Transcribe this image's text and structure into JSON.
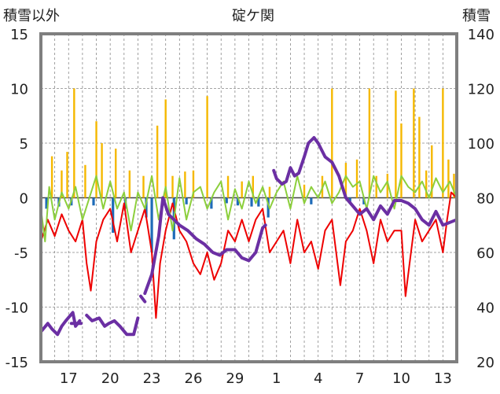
{
  "chart_data": {
    "type": "line",
    "title": "碇ケ関",
    "left_axis_label": "積雪以外",
    "right_axis_label": "積雪",
    "left_ylim": [
      -15,
      15
    ],
    "right_ylim": [
      20,
      140
    ],
    "left_ticks": [
      "15",
      "10",
      "5",
      "0",
      "-5",
      "-10",
      "-15"
    ],
    "right_ticks": [
      "140",
      "120",
      "100",
      "80",
      "60",
      "40",
      "20"
    ],
    "x_tick_labels": [
      "17",
      "20",
      "23",
      "26",
      "29",
      "1",
      "4",
      "7",
      "10",
      "13"
    ],
    "x_tick_days": [
      2,
      5,
      8,
      11,
      14,
      17,
      20,
      23,
      26,
      29
    ],
    "x_range_days": [
      0,
      30
    ],
    "grid": true,
    "colors": {
      "temperature": "#ee0000",
      "secondary": "#8ccf3c",
      "precip_orange": "#f5b800",
      "precip_blue": "#1e6bb8",
      "snow_depth": "#6b2fa3",
      "frame": "#7f7f7f",
      "grid": "#888888"
    },
    "bars_orange": [
      {
        "d": 0.8,
        "v": 3.8
      },
      {
        "d": 1.5,
        "v": 2.5
      },
      {
        "d": 1.9,
        "v": 4.2
      },
      {
        "d": 2.4,
        "v": 10.0
      },
      {
        "d": 3.2,
        "v": 3.0
      },
      {
        "d": 4.0,
        "v": 7.0
      },
      {
        "d": 4.4,
        "v": 5.0
      },
      {
        "d": 5.4,
        "v": 4.5
      },
      {
        "d": 6.4,
        "v": 2.5
      },
      {
        "d": 7.4,
        "v": 2.0
      },
      {
        "d": 8.4,
        "v": 6.6
      },
      {
        "d": 9.0,
        "v": 9.0
      },
      {
        "d": 9.5,
        "v": 2.0
      },
      {
        "d": 10.4,
        "v": 2.4
      },
      {
        "d": 11.0,
        "v": 2.5
      },
      {
        "d": 12.0,
        "v": 9.3
      },
      {
        "d": 13.5,
        "v": 2.0
      },
      {
        "d": 14.5,
        "v": 1.5
      },
      {
        "d": 15.3,
        "v": 2.0
      },
      {
        "d": 16.5,
        "v": 1.0
      },
      {
        "d": 19.0,
        "v": 1.2
      },
      {
        "d": 20.3,
        "v": 2.0
      },
      {
        "d": 21.0,
        "v": 10.0
      },
      {
        "d": 22.0,
        "v": 3.2
      },
      {
        "d": 22.8,
        "v": 3.5
      },
      {
        "d": 23.7,
        "v": 10.0
      },
      {
        "d": 24.2,
        "v": 2.0
      },
      {
        "d": 25.0,
        "v": 2.2
      },
      {
        "d": 25.6,
        "v": 9.8
      },
      {
        "d": 26.0,
        "v": 6.8
      },
      {
        "d": 26.9,
        "v": 10.0
      },
      {
        "d": 27.3,
        "v": 7.4
      },
      {
        "d": 27.8,
        "v": 2.5
      },
      {
        "d": 28.2,
        "v": 4.8
      },
      {
        "d": 29.0,
        "v": 10.0
      },
      {
        "d": 29.4,
        "v": 3.5
      },
      {
        "d": 29.8,
        "v": 2.2
      }
    ],
    "bars_blue": [
      {
        "d": 0.4,
        "v": -1.0
      },
      {
        "d": 1.3,
        "v": -0.8
      },
      {
        "d": 2.2,
        "v": -0.7
      },
      {
        "d": 3.8,
        "v": -0.7
      },
      {
        "d": 5.2,
        "v": -3.2
      },
      {
        "d": 6.1,
        "v": -1.0
      },
      {
        "d": 7.6,
        "v": -1.8
      },
      {
        "d": 8.0,
        "v": -5.0
      },
      {
        "d": 9.6,
        "v": -3.8
      },
      {
        "d": 10.5,
        "v": -0.6
      },
      {
        "d": 12.3,
        "v": -1.0
      },
      {
        "d": 13.4,
        "v": -0.5
      },
      {
        "d": 14.2,
        "v": -0.7
      },
      {
        "d": 15.2,
        "v": -0.8
      },
      {
        "d": 15.7,
        "v": -0.8
      },
      {
        "d": 16.4,
        "v": -1.8
      },
      {
        "d": 19.5,
        "v": -0.6
      },
      {
        "d": 22.3,
        "v": -0.5
      },
      {
        "d": 23.3,
        "v": -0.6
      }
    ],
    "series": [
      {
        "key": "temperature",
        "axis": "left",
        "stroke_width": 2,
        "x": [
          0,
          0.5,
          1,
          1.5,
          2,
          2.5,
          3,
          3.3,
          3.6,
          4,
          4.5,
          5,
          5.5,
          6,
          6.5,
          7,
          7.5,
          8,
          8.3,
          8.6,
          9,
          9.5,
          10,
          10.5,
          11,
          11.5,
          12,
          12.5,
          13,
          13.5,
          14,
          14.5,
          15,
          15.5,
          16,
          16.5,
          17,
          17.5,
          18,
          18.5,
          19,
          19.5,
          20,
          20.5,
          21,
          21.3,
          21.6,
          22,
          22.5,
          23,
          23.5,
          24,
          24.5,
          25,
          25.5,
          26,
          26.3,
          26.6,
          27,
          27.5,
          28,
          28.5,
          29,
          29.3,
          29.6,
          30
        ],
        "y": [
          -4,
          -2,
          -3.5,
          -1.5,
          -3,
          -4,
          -2,
          -6,
          -8.5,
          -4,
          -2,
          -1,
          -4,
          -0.5,
          -5,
          -3,
          -1,
          -5,
          -11,
          -6,
          -3,
          -0.5,
          -3,
          -4,
          -6,
          -7,
          -5,
          -7.5,
          -6,
          -3,
          -4,
          -2,
          -4,
          -2,
          -1,
          -5,
          -4,
          -3,
          -6,
          -2,
          -5,
          -4,
          -6.5,
          -3,
          -2,
          -5,
          -8,
          -4,
          -3,
          -1,
          -3,
          -6,
          -2,
          -4,
          -3,
          -3,
          -9,
          -6,
          -2,
          -4,
          -3,
          -2,
          -5,
          -2,
          0.5,
          0
        ]
      },
      {
        "key": "secondary",
        "axis": "left",
        "stroke_width": 2,
        "x": [
          0,
          0.3,
          0.6,
          1,
          1.5,
          2,
          2.5,
          3,
          3.5,
          4,
          4.5,
          5,
          5.5,
          6,
          6.5,
          7,
          7.5,
          8,
          8.5,
          9,
          9.5,
          10,
          10.5,
          11,
          11.5,
          12,
          12.5,
          13,
          13.5,
          14,
          14.5,
          15,
          15.5,
          16,
          16.5,
          17,
          17.5,
          18,
          18.5,
          19,
          19.5,
          20,
          20.5,
          21,
          21.5,
          22,
          22.5,
          23,
          23.5,
          24,
          24.5,
          25,
          25.5,
          26,
          26.5,
          27,
          27.5,
          28,
          28.5,
          29,
          29.5,
          30
        ],
        "y": [
          -1,
          -4,
          1,
          -2,
          0.5,
          -1,
          1,
          -2,
          0,
          2,
          -1,
          1.5,
          -1,
          0.5,
          -3,
          0.5,
          -1,
          2,
          -2,
          1,
          -3,
          1.8,
          -2,
          0.5,
          1,
          -1,
          0.5,
          1.5,
          -2,
          0.8,
          -1,
          1.5,
          -0.5,
          1,
          -1,
          0.5,
          1.5,
          -1,
          2,
          -0.5,
          1,
          0,
          1.5,
          -0.5,
          0.5,
          2,
          1,
          1.5,
          -1,
          2,
          0.5,
          1.5,
          -1,
          2,
          1,
          0.5,
          1.5,
          0,
          1.8,
          0.5,
          1.5,
          0
        ]
      },
      {
        "key": "snow_depth",
        "axis": "right",
        "stroke_width": 4,
        "segments": [
          {
            "x": [
              0,
              0.5,
              0.8,
              1.2,
              1.5,
              1.8,
              2.3,
              2.5,
              2.8
            ],
            "y": [
              31,
              34,
              32,
              30,
              33,
              35,
              38,
              33,
              35
            ]
          },
          {
            "x": [
              2.2,
              2.9
            ],
            "y": [
              34,
              34
            ]
          },
          {
            "x": [
              3.3,
              3.7,
              4.2,
              4.6,
              4.9,
              5.3,
              5.7,
              6.2,
              6.7,
              7.0
            ],
            "y": [
              37,
              35,
              36,
              33,
              34,
              35,
              33,
              30,
              30,
              36
            ]
          },
          {
            "x": [
              7.2,
              7.5
            ],
            "y": [
              44,
              42
            ]
          },
          {
            "x": [
              7.5,
              8.0,
              8.5,
              8.8,
              9.2,
              9.6,
              10.0,
              10.6,
              11.2,
              11.8,
              12.0,
              12.4,
              12.9,
              13.4,
              14.0,
              14.5,
              15.0,
              15.5,
              16.0,
              16.2
            ],
            "y": [
              45,
              52,
              66,
              80,
              74,
              72,
              70,
              68,
              65,
              63,
              62,
              60,
              59,
              61,
              61,
              58,
              57,
              60,
              69,
              70
            ]
          },
          {
            "x": [
              16.8,
              17.0,
              17.4,
              17.7,
              18.0,
              18.3,
              18.6,
              19.0,
              19.3,
              19.7,
              20.0,
              20.5,
              21.0,
              21.5,
              22.0,
              22.5,
              23.0,
              23.5,
              24.0,
              24.5,
              25.0,
              25.5,
              26.0,
              26.5,
              27.0,
              27.5,
              28.0,
              28.5,
              29.0,
              29.5,
              30.0
            ],
            "y": [
              90,
              87,
              85,
              86,
              91,
              88,
              89,
              95,
              100,
              102,
              100,
              95,
              93,
              88,
              80,
              77,
              74,
              76,
              72,
              77,
              74,
              79,
              79,
              78,
              76,
              72,
              70,
              75,
              70,
              71,
              72
            ]
          }
        ]
      }
    ]
  }
}
